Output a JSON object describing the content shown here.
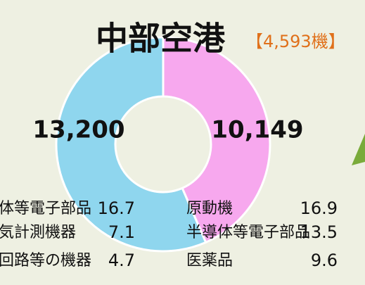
{
  "chart_data": {
    "type": "pie",
    "title": "中部空港",
    "subtitle": "【4,593機】",
    "values": [
      13200,
      10149
    ],
    "value_labels": [
      "13,200",
      "10,149"
    ],
    "colors": [
      "#8fd6ee",
      "#f7a8ee"
    ],
    "lists": [
      {
        "items": [
          {
            "label": "体等電子部品",
            "value": 16.7
          },
          {
            "label": "気計測機器",
            "value": 7.1
          },
          {
            "label": "回路等の機器",
            "value": 4.7
          }
        ]
      },
      {
        "items": [
          {
            "label": "原動機",
            "value": 16.9
          },
          {
            "label": "半導体等電子部品",
            "value": 13.5
          },
          {
            "label": "医薬品",
            "value": 9.6
          }
        ]
      }
    ]
  }
}
